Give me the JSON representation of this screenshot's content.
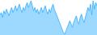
{
  "chart_data": {
    "type": "area",
    "values": [
      55,
      58,
      52,
      60,
      56,
      62,
      58,
      54,
      60,
      64,
      58,
      62,
      66,
      60,
      64,
      68,
      62,
      58,
      64,
      60,
      66,
      70,
      64,
      68,
      72,
      66,
      60,
      64,
      58,
      62,
      56,
      60,
      64,
      58,
      62,
      66,
      60,
      56,
      62,
      58,
      64,
      68,
      62,
      58,
      54,
      50,
      46,
      42,
      38,
      34,
      32,
      36,
      40,
      44,
      48,
      44,
      40,
      46,
      50,
      54,
      48,
      44,
      52,
      56,
      50,
      46,
      52,
      58,
      64,
      60,
      68,
      55,
      72,
      62,
      70,
      66
    ],
    "color": "#4db8ff",
    "ylim": [
      31,
      73
    ],
    "tick_labels": false,
    "grid": false
  }
}
